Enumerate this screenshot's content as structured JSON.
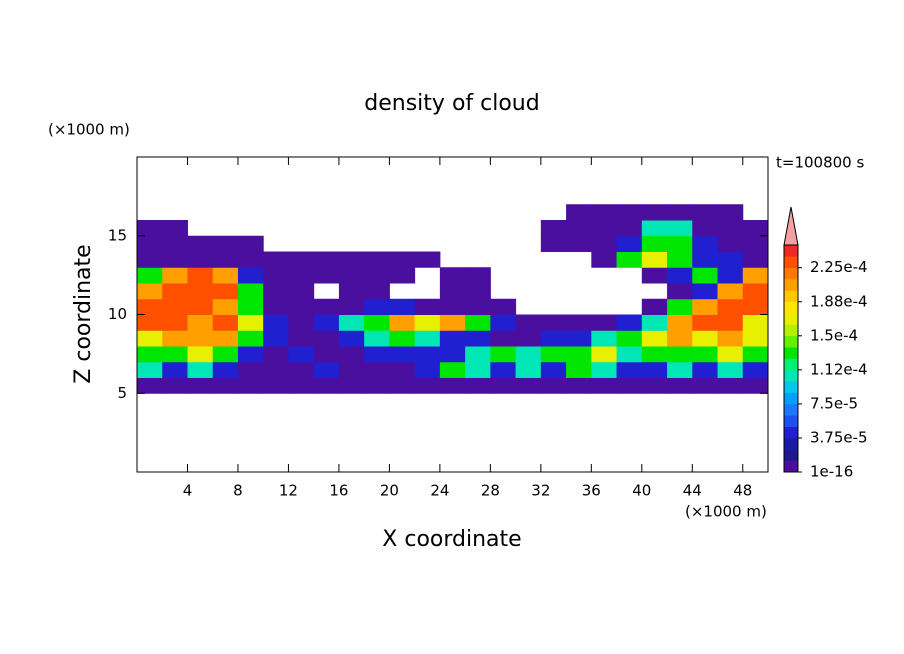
{
  "chart_data": {
    "type": "contour",
    "title": "density of cloud",
    "x_label": "X coordinate",
    "y_label": "Z coordinate",
    "x_unit": "(×1000 m)",
    "y_unit": "(×1000 m)",
    "annotation": "t=100800 s",
    "xlim": [
      0,
      50
    ],
    "ylim": [
      0,
      20
    ],
    "xticks": [
      4,
      8,
      12,
      16,
      20,
      24,
      28,
      32,
      36,
      40,
      44,
      48
    ],
    "yticks": [
      5,
      10,
      15
    ],
    "xedges": [
      0,
      2,
      4,
      6,
      8,
      10,
      12,
      14,
      16,
      18,
      20,
      22,
      24,
      26,
      28,
      30,
      32,
      34,
      36,
      38,
      40,
      42,
      44,
      46,
      48,
      50
    ],
    "yedges": [
      5,
      6,
      7,
      8,
      9,
      10,
      11,
      12,
      13,
      14,
      15,
      16,
      17
    ],
    "values": [
      [
        5e-06,
        5e-06,
        5e-06,
        5e-06,
        5e-06,
        5e-06,
        5e-06,
        5e-06,
        5e-06,
        5e-06,
        5e-06,
        5e-06,
        5e-06,
        5e-06,
        5e-06,
        5e-06,
        5e-06,
        5e-06,
        5e-06,
        5e-06,
        5e-06,
        5e-06,
        5e-06,
        5e-06,
        5e-06
      ],
      [
        0.0001,
        4e-05,
        0.0001,
        4e-05,
        5e-06,
        5e-06,
        5e-06,
        4e-05,
        5e-06,
        5e-06,
        5e-06,
        4e-05,
        0.00013,
        0.0001,
        4e-05,
        0.0001,
        4e-05,
        0.00013,
        0.0001,
        4e-05,
        4e-05,
        0.0001,
        4e-05,
        0.0001,
        4e-05
      ],
      [
        0.00013,
        0.00013,
        0.00017,
        0.00013,
        4e-05,
        5e-06,
        4e-05,
        5e-06,
        5e-06,
        4e-05,
        4e-05,
        4e-05,
        4e-05,
        0.0001,
        0.00013,
        0.0001,
        0.00013,
        0.00013,
        0.00017,
        0.0001,
        0.00013,
        0.00013,
        0.00013,
        0.00017,
        0.00013
      ],
      [
        0.00017,
        0.0002,
        0.0002,
        0.0002,
        0.00013,
        4e-05,
        5e-06,
        5e-06,
        4e-05,
        0.0001,
        0.00013,
        0.0001,
        4e-05,
        4e-05,
        5e-06,
        5e-06,
        4e-05,
        4e-05,
        0.0001,
        0.00013,
        0.00017,
        0.0002,
        0.00017,
        0.0002,
        0.00017
      ],
      [
        0.00023,
        0.00023,
        0.0002,
        0.00023,
        0.00017,
        4e-05,
        5e-06,
        4e-05,
        0.0001,
        0.00013,
        0.0002,
        0.00017,
        0.0002,
        0.00013,
        4e-05,
        5e-06,
        5e-06,
        5e-06,
        5e-06,
        4e-05,
        0.0001,
        0.0002,
        0.00023,
        0.00023,
        0.00017
      ],
      [
        0.00023,
        0.00023,
        0.00023,
        0.0002,
        0.00013,
        5e-06,
        5e-06,
        5e-06,
        5e-06,
        4e-05,
        4e-05,
        5e-06,
        5e-06,
        5e-06,
        5e-06,
        null,
        null,
        null,
        null,
        null,
        5e-06,
        0.00013,
        0.0002,
        0.00023,
        0.00023
      ],
      [
        0.0002,
        0.00023,
        0.00023,
        0.00023,
        0.00013,
        5e-06,
        5e-06,
        null,
        5e-06,
        5e-06,
        null,
        null,
        5e-06,
        5e-06,
        null,
        null,
        null,
        null,
        null,
        null,
        null,
        5e-06,
        4e-05,
        0.0002,
        0.00023
      ],
      [
        0.00013,
        0.0002,
        0.00023,
        0.0002,
        4e-05,
        5e-06,
        5e-06,
        5e-06,
        5e-06,
        5e-06,
        5e-06,
        null,
        5e-06,
        5e-06,
        null,
        null,
        null,
        null,
        null,
        null,
        5e-06,
        4e-05,
        0.00013,
        4e-05,
        0.0002
      ],
      [
        5e-06,
        5e-06,
        5e-06,
        5e-06,
        5e-06,
        5e-06,
        5e-06,
        5e-06,
        5e-06,
        5e-06,
        5e-06,
        5e-06,
        null,
        null,
        null,
        null,
        null,
        null,
        5e-06,
        0.00013,
        0.00017,
        0.00013,
        4e-05,
        4e-05,
        5e-06
      ],
      [
        5e-06,
        5e-06,
        5e-06,
        5e-06,
        5e-06,
        null,
        null,
        null,
        null,
        null,
        null,
        null,
        null,
        null,
        null,
        null,
        5e-06,
        5e-06,
        5e-06,
        4e-05,
        0.00013,
        0.00013,
        4e-05,
        5e-06,
        5e-06
      ],
      [
        5e-06,
        5e-06,
        null,
        null,
        null,
        null,
        null,
        null,
        null,
        null,
        null,
        null,
        null,
        null,
        null,
        null,
        5e-06,
        5e-06,
        5e-06,
        5e-06,
        0.0001,
        0.0001,
        5e-06,
        5e-06,
        5e-06
      ],
      [
        null,
        null,
        null,
        null,
        null,
        null,
        null,
        null,
        null,
        null,
        null,
        null,
        null,
        null,
        null,
        null,
        null,
        5e-06,
        5e-06,
        5e-06,
        5e-06,
        5e-06,
        5e-06,
        5e-06,
        null
      ]
    ],
    "levels": [
      1e-16,
      1.25e-05,
      2.5e-05,
      3.75e-05,
      5e-05,
      6.25e-05,
      7.5e-05,
      8.75e-05,
      0.0001,
      0.0001125,
      0.000125,
      0.0001375,
      0.00015,
      0.0001625,
      0.000175,
      0.0001875,
      0.0002,
      0.0002125,
      0.000225,
      0.0002375,
      0.00025
    ],
    "colors": [
      "#4b0fa0",
      "#1e1a8c",
      "#1a1aa8",
      "#2020d0",
      "#1e50f0",
      "#1e78ff",
      "#00a0ff",
      "#00c8e6",
      "#00e6b4",
      "#00f078",
      "#00e600",
      "#64f000",
      "#b4f000",
      "#e6f000",
      "#ffe600",
      "#ffc800",
      "#ffa000",
      "#ff7800",
      "#ff5000",
      "#f02828"
    ],
    "extend_color": "#f4a0a0",
    "colorbar_ticks": [
      {
        "value": 1e-16,
        "label": "1e-16"
      },
      {
        "value": 3.75e-05,
        "label": "3.75e-5"
      },
      {
        "value": 7.5e-05,
        "label": "7.5e-5"
      },
      {
        "value": 0.0001125,
        "label": "1.12e-4"
      },
      {
        "value": 0.00015,
        "label": "1.5e-4"
      },
      {
        "value": 0.0001875,
        "label": "1.88e-4"
      },
      {
        "value": 0.000225,
        "label": "2.25e-4"
      }
    ]
  }
}
